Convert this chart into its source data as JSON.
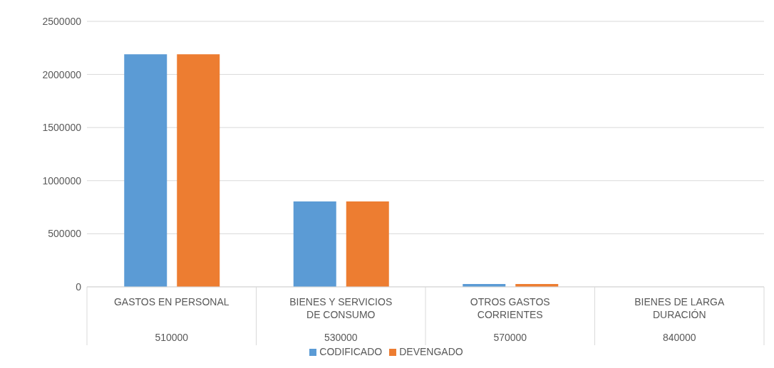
{
  "chart_data": {
    "type": "bar",
    "categories": [
      "GASTOS EN PERSONAL\n510000",
      "BIENES Y SERVICIOS DE CONSUMO\n530000",
      "OTROS GASTOS CORRIENTES\n570000",
      "BIENES DE LARGA DURACIÓN\n840000"
    ],
    "series": [
      {
        "name": "CODIFICADO",
        "color": "#5b9bd5",
        "values": [
          2190000,
          805000,
          27000,
          0
        ]
      },
      {
        "name": "DEVENGADO",
        "color": "#ed7d31",
        "values": [
          2190000,
          805000,
          27000,
          0
        ]
      }
    ],
    "ylim": [
      0,
      2500000
    ],
    "yticks": [
      0,
      500000,
      1000000,
      1500000,
      2000000,
      2500000
    ],
    "grid": "y",
    "legend": "bottom"
  }
}
